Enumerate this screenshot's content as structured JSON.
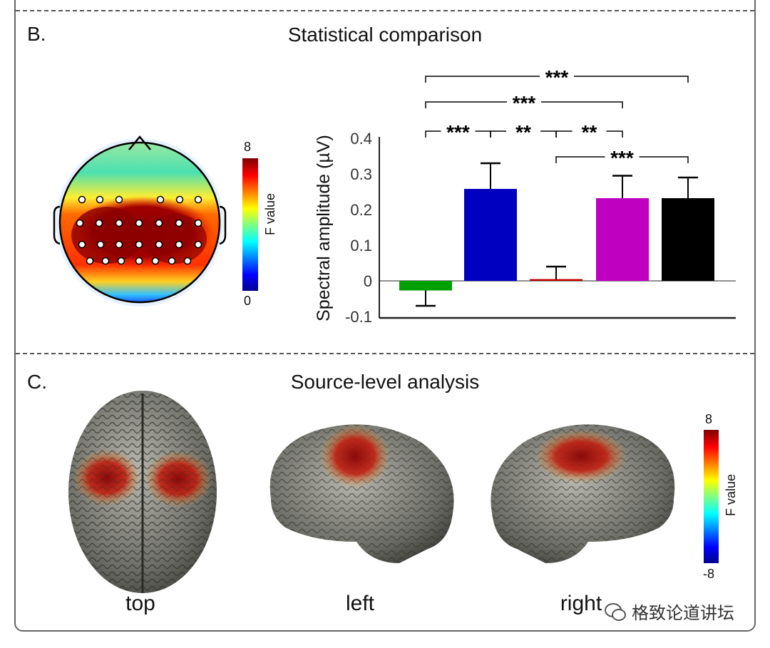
{
  "panel_b": {
    "letter": "B.",
    "title": "Statistical comparison",
    "topomap": {
      "colorbar_max": "8",
      "colorbar_min": "0",
      "colorbar_label": "F value",
      "colormap": "jet"
    }
  },
  "panel_c": {
    "letter": "C.",
    "title": "Source-level analysis",
    "views": [
      "top",
      "left",
      "right"
    ],
    "colorbar_max": "8",
    "colorbar_min": "-8",
    "colorbar_label": "F value",
    "colormap": "jet"
  },
  "watermark": "格致论道讲坛",
  "chart_data": {
    "type": "bar",
    "title": "Statistical comparison",
    "ylabel": "Spectral amplitude  (µV)",
    "xlabel": "",
    "ylim": [
      -0.1,
      0.4
    ],
    "yticks": [
      "-0.1",
      "0",
      "0.1",
      "0.2",
      "0.3",
      "0.4"
    ],
    "bars": [
      {
        "color": "#00a000",
        "value": -0.027,
        "error_end": -0.07
      },
      {
        "color": "#0000c0",
        "value": 0.258,
        "error_end": 0.33
      },
      {
        "color": "#c00000",
        "value": 0.005,
        "error_end": 0.04
      },
      {
        "color": "#c000c0",
        "value": 0.232,
        "error_end": 0.295
      },
      {
        "color": "#000000",
        "value": 0.232,
        "error_end": 0.29
      }
    ],
    "significance": [
      {
        "from": 0,
        "to": 4,
        "label": "***"
      },
      {
        "from": 0,
        "to": 3,
        "label": "***"
      },
      {
        "from": 0,
        "to": 1,
        "label": "***"
      },
      {
        "from": 1,
        "to": 2,
        "label": "**"
      },
      {
        "from": 2,
        "to": 3,
        "label": "**"
      },
      {
        "from": 2,
        "to": 4,
        "label": "***"
      }
    ],
    "grid": false
  }
}
